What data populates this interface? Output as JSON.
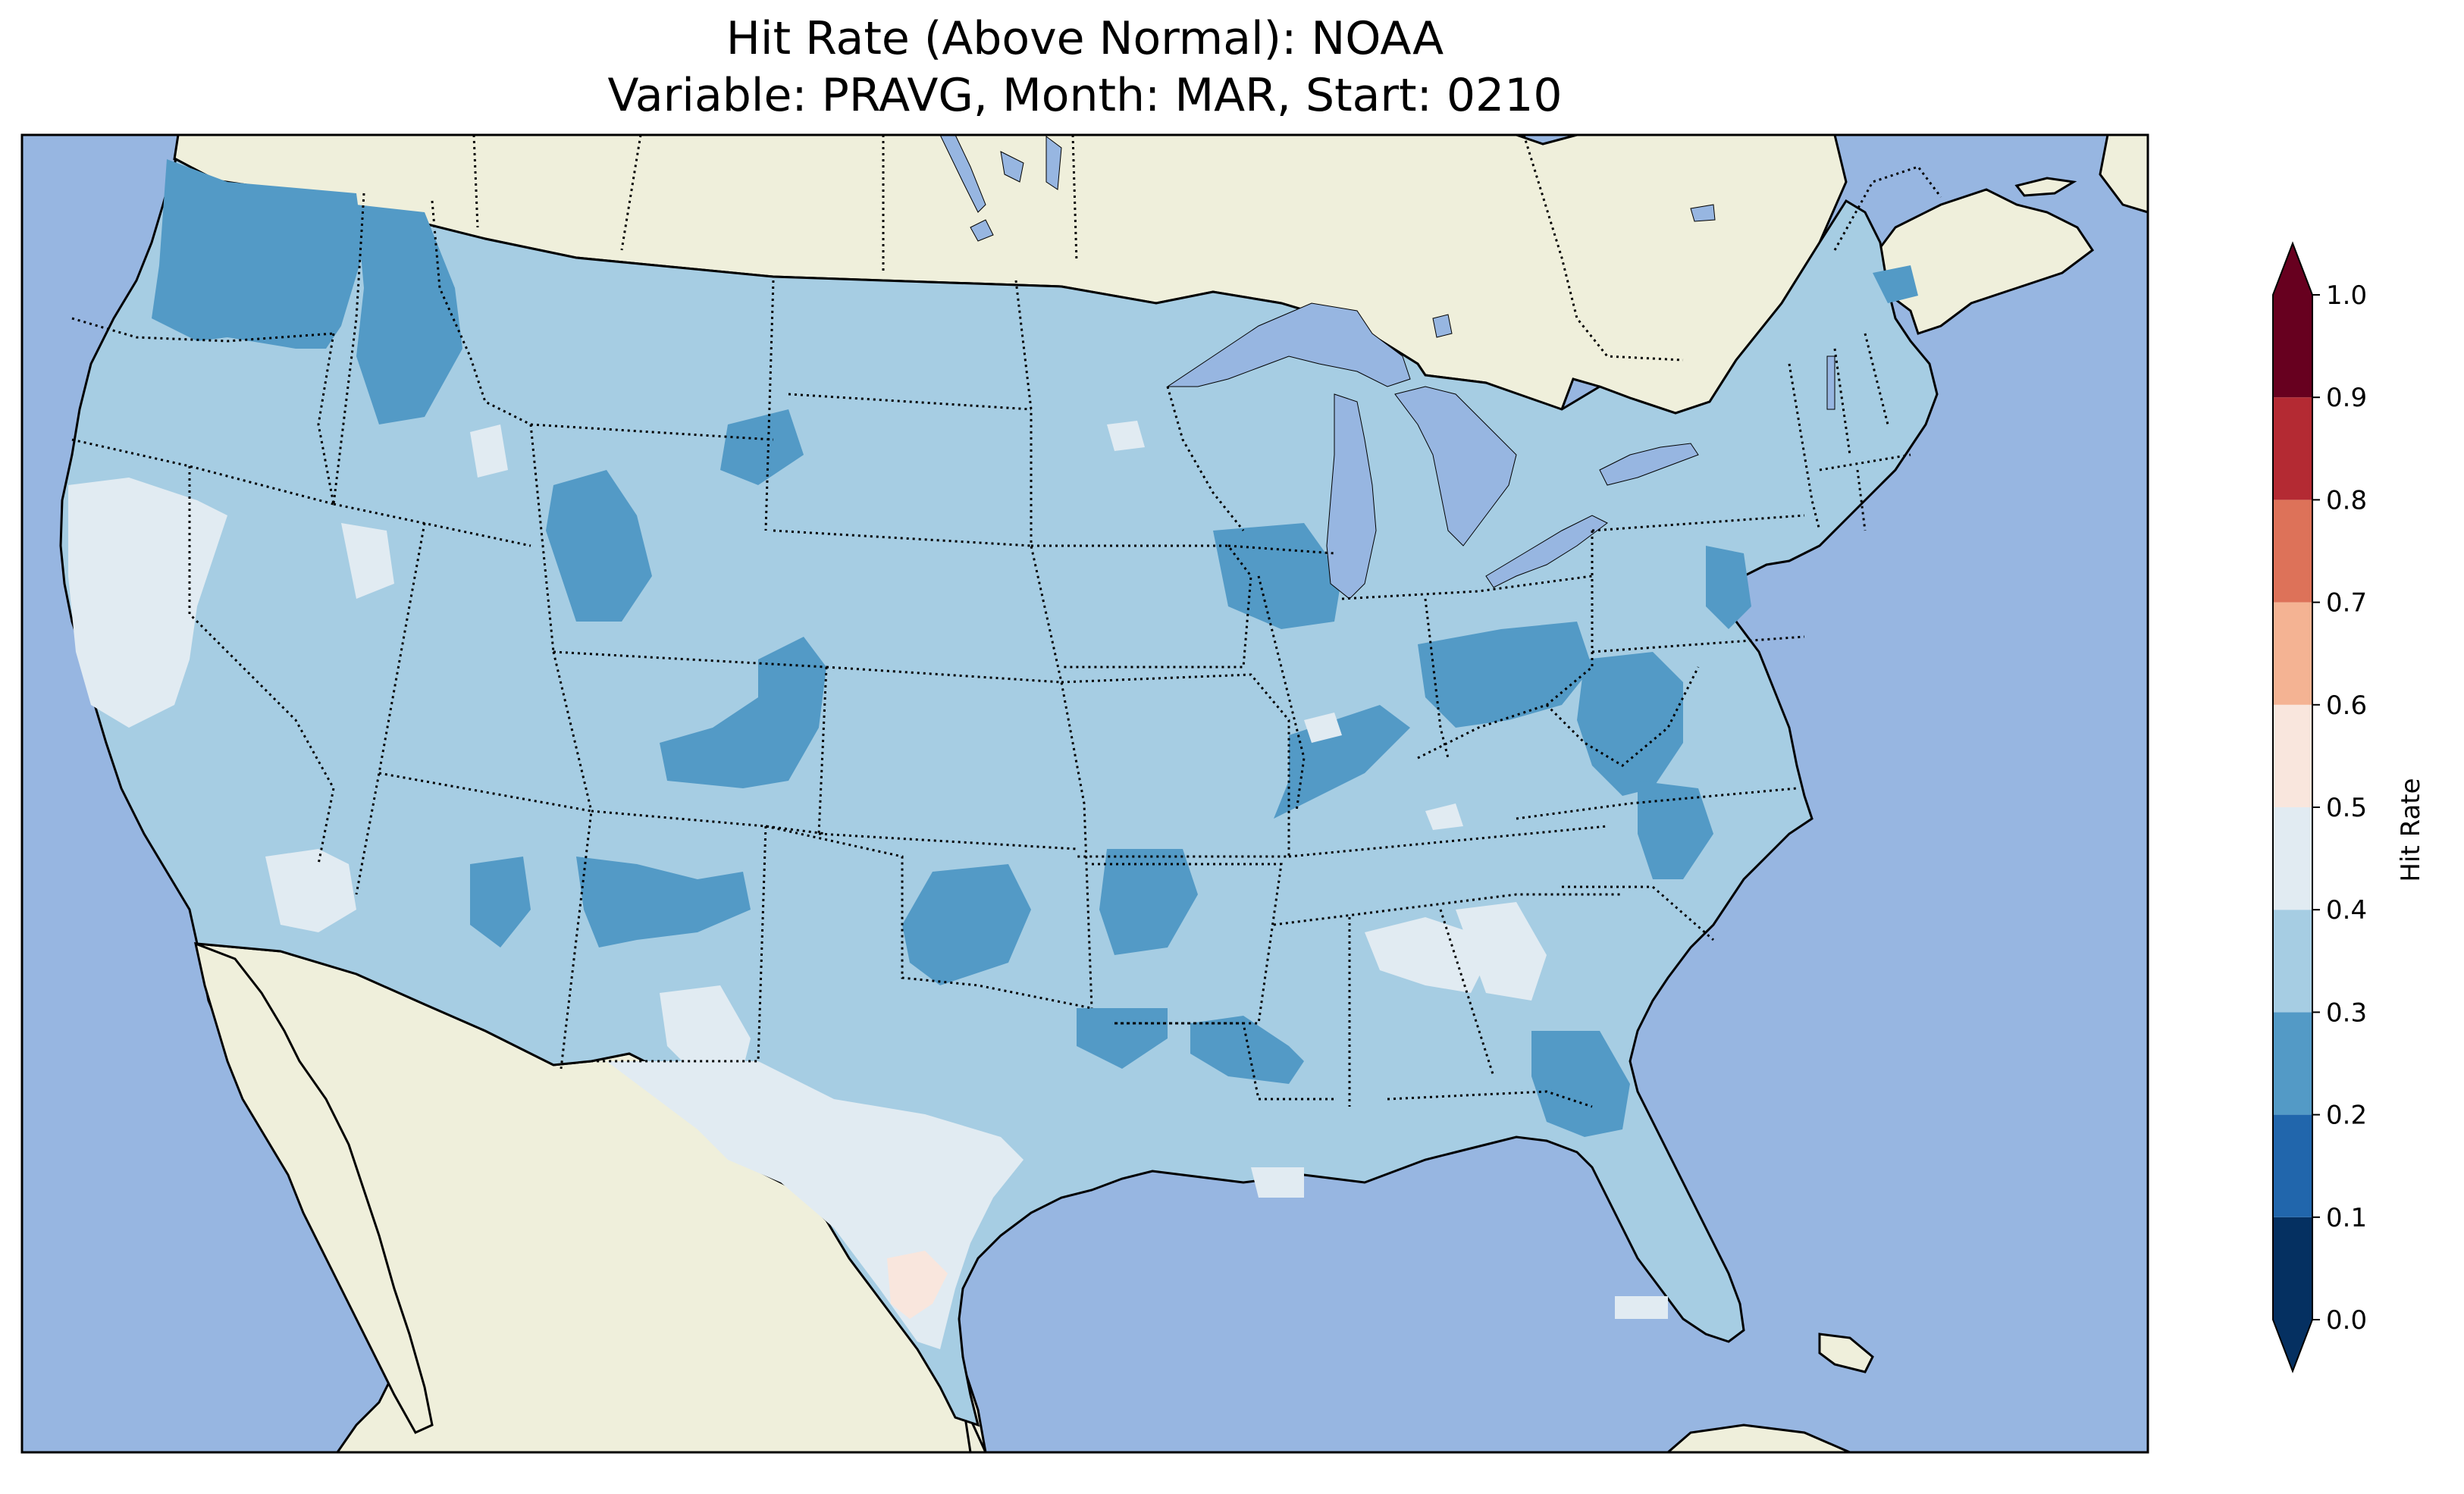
{
  "title": {
    "line1": "Hit Rate (Above Normal): NOAA",
    "line2": "Variable: PRAVG, Month: MAR, Start: 0210"
  },
  "colors": {
    "ocean": "#97b6e1",
    "land": "#efefdb",
    "lakes": "#97b6e1"
  },
  "colorbar": {
    "label": "Hit Rate",
    "extend": "both",
    "ticks": [
      "0.0",
      "0.1",
      "0.2",
      "0.3",
      "0.4",
      "0.5",
      "0.6",
      "0.7",
      "0.8",
      "0.9",
      "1.0"
    ],
    "bins": [
      {
        "from": 0.0,
        "to": 0.1,
        "color": "#053061"
      },
      {
        "from": 0.1,
        "to": 0.2,
        "color": "#2166ac"
      },
      {
        "from": 0.2,
        "to": 0.3,
        "color": "#539ac6"
      },
      {
        "from": 0.3,
        "to": 0.4,
        "color": "#a6cde3"
      },
      {
        "from": 0.4,
        "to": 0.5,
        "color": "#e1ebf2"
      },
      {
        "from": 0.5,
        "to": 0.6,
        "color": "#f9e6dd"
      },
      {
        "from": 0.6,
        "to": 0.7,
        "color": "#f4b393"
      },
      {
        "from": 0.7,
        "to": 0.8,
        "color": "#dd7259"
      },
      {
        "from": 0.8,
        "to": 0.9,
        "color": "#b42a33"
      },
      {
        "from": 0.9,
        "to": 1.0,
        "color": "#67001f"
      }
    ]
  }
}
